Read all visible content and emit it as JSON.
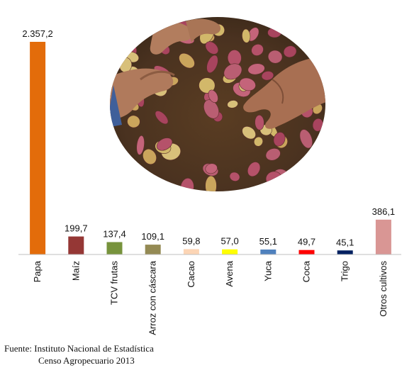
{
  "chart_data": {
    "type": "bar",
    "categories": [
      "Papa",
      "Maíz",
      "TCV frutas",
      "Arroz con cáscara",
      "Cacao",
      "Avena",
      "Yuca",
      "Coca",
      "Trigo",
      "Otros cultivos"
    ],
    "values": [
      2357.2,
      199.7,
      137.4,
      109.1,
      59.8,
      57.0,
      55.1,
      49.7,
      45.1,
      386.1
    ],
    "value_labels": [
      "2.357,2",
      "199,7",
      "137,4",
      "109,1",
      "59,8",
      "57,0",
      "55,1",
      "49,7",
      "45,1",
      "386,1"
    ],
    "colors": [
      "#e36c0a",
      "#953735",
      "#77933c",
      "#948a54",
      "#fcd5b5",
      "#ffff00",
      "#4f81bd",
      "#ff0000",
      "#002060",
      "#d99694"
    ],
    "ylim": [
      0,
      2357.2
    ],
    "grid": false,
    "legend": "none"
  },
  "photo": {
    "description_icon": "potato-harvest-photo"
  },
  "source": {
    "line1": "Fuente: Instituto Nacional de Estadística",
    "line2": "Censo Agropecuario 2013"
  }
}
